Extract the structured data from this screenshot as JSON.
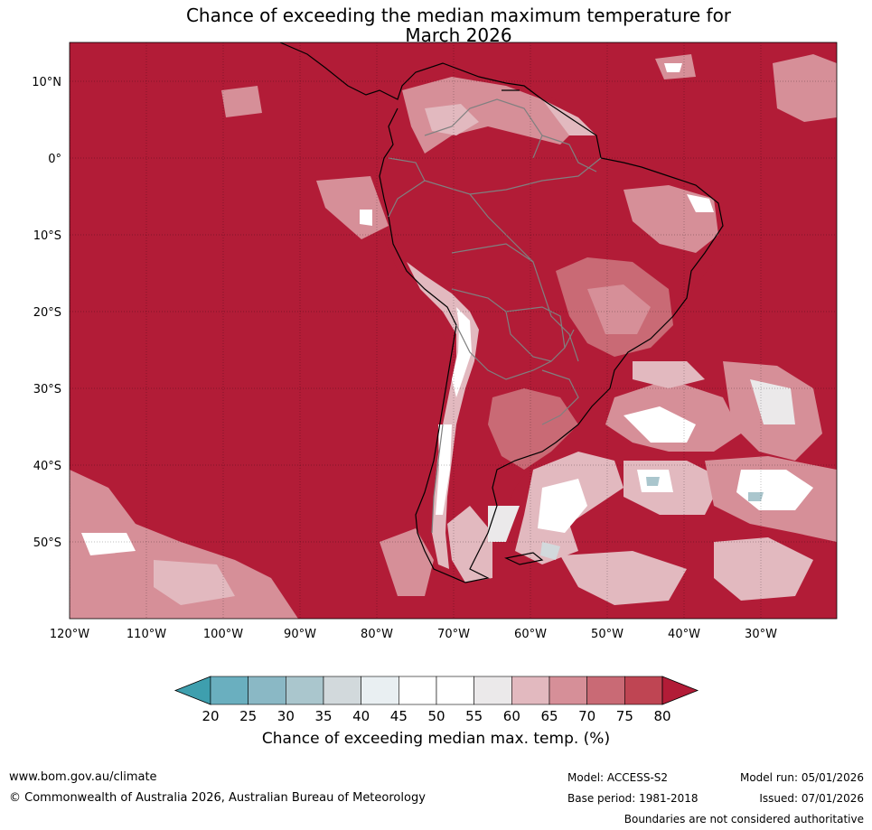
{
  "title_line1": "Chance of exceeding the median maximum temperature for",
  "title_line2": "March 2026",
  "lat_labels": [
    "10°N",
    "0°",
    "10°S",
    "20°S",
    "30°S",
    "40°S",
    "50°S"
  ],
  "lon_labels": [
    "120°W",
    "110°W",
    "100°W",
    "90°W",
    "80°W",
    "70°W",
    "60°W",
    "50°W",
    "40°W",
    "30°W"
  ],
  "colorbar": {
    "ticks": [
      "20",
      "25",
      "30",
      "35",
      "40",
      "45",
      "50",
      "55",
      "60",
      "65",
      "70",
      "75",
      "80"
    ],
    "colors": [
      "#3e9fae",
      "#6aafbf",
      "#8ab8c5",
      "#aac6cd",
      "#d2d9dc",
      "#e9eff2",
      "#ffffff",
      "#ffffff",
      "#ebe9ea",
      "#e2b9bf",
      "#d68f98",
      "#c96a75",
      "#bf4553",
      "#b21c37"
    ],
    "title": "Chance of exceeding median max. temp. (%)"
  },
  "colors": {
    "ocean_high": "#b21c37",
    "land_mid": "#c96a75",
    "land_light": "#d68f98",
    "land_pale": "#e2b9bf",
    "neutral": "#ffffff",
    "low": "#aac6cd",
    "coast": "#000000",
    "border": "#808080"
  },
  "footer": {
    "website": "www.bom.gov.au/climate",
    "copyright": "© Commonwealth of Australia 2026, Australian Bureau of Meteorology",
    "model": "Model: ACCESS-S2",
    "base_period": "Base period: 1981-2018",
    "model_run": "Model run: 05/01/2026",
    "issued": "Issued: 07/01/2026",
    "disclaimer": "Boundaries are not considered authoritative"
  }
}
